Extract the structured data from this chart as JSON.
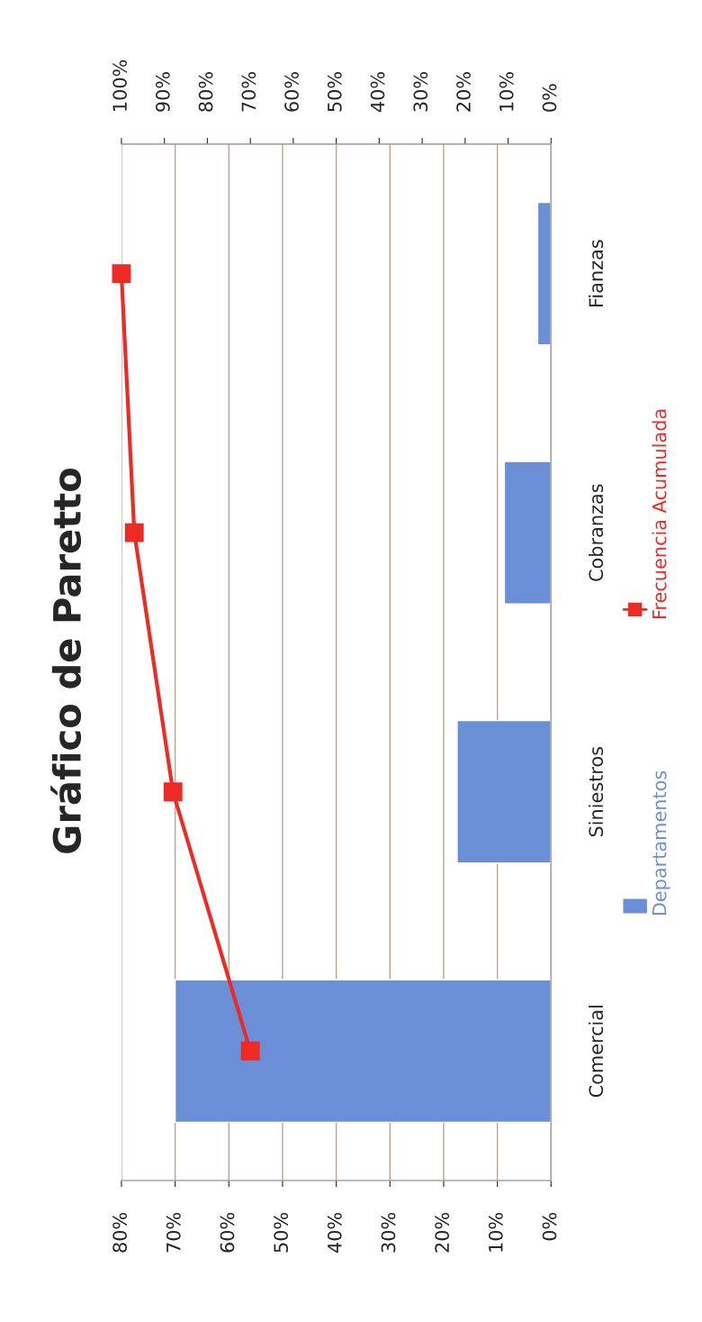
{
  "chart_data": {
    "type": "bar",
    "orientation": "horizontal",
    "title": "Gráfico de Paretto",
    "categories": [
      "Fianzas",
      "Cobranzas",
      "Siniestros",
      "Comercial"
    ],
    "series": [
      {
        "name": "Departamentos",
        "color": "#6b8fd6",
        "values": [
          2.5,
          8.7,
          17.5,
          70
        ]
      },
      {
        "name": "Frecuencia Acumulada",
        "type": "line",
        "axis": "x2",
        "color": "#ee2a24",
        "marker": "square",
        "values": [
          100,
          97,
          88,
          70
        ]
      }
    ],
    "xlim": [
      80,
      0
    ],
    "xticks": [
      {
        "value": 80,
        "label": "80%"
      },
      {
        "value": 70,
        "label": "70%"
      },
      {
        "value": 60,
        "label": "60%"
      },
      {
        "value": 50,
        "label": "50%"
      },
      {
        "value": 40,
        "label": "40%"
      },
      {
        "value": 30,
        "label": "30%"
      },
      {
        "value": 20,
        "label": "20%"
      },
      {
        "value": 10,
        "label": "10%"
      },
      {
        "value": 0,
        "label": "0%"
      }
    ],
    "x2lim": [
      100,
      0
    ],
    "x2ticks": [
      {
        "value": 100,
        "label": "100%"
      },
      {
        "value": 90,
        "label": "90%"
      },
      {
        "value": 80,
        "label": "80%"
      },
      {
        "value": 70,
        "label": "70%"
      },
      {
        "value": 60,
        "label": "60%"
      },
      {
        "value": 50,
        "label": "50%"
      },
      {
        "value": 40,
        "label": "40%"
      },
      {
        "value": 30,
        "label": "30%"
      },
      {
        "value": 20,
        "label": "20%"
      },
      {
        "value": 10,
        "label": "10%"
      },
      {
        "value": 0,
        "label": "0%"
      }
    ],
    "grid": "x",
    "legend": "right"
  }
}
